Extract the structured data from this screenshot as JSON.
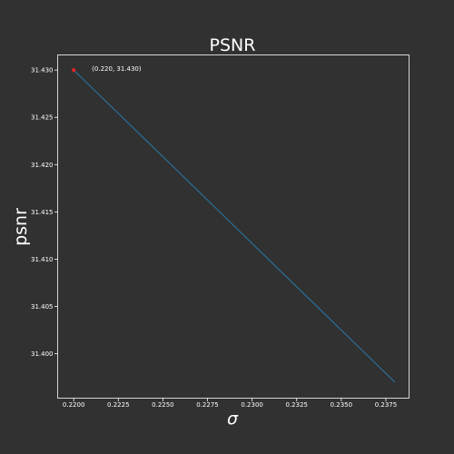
{
  "chart_data": {
    "type": "line",
    "title": "PSNR",
    "xlabel": "σ",
    "ylabel": "psnr",
    "xlim": [
      0.2191,
      0.2388
    ],
    "ylim": [
      31.3953,
      31.4316
    ],
    "x_ticks": [
      0.22,
      0.2225,
      0.225,
      0.2275,
      0.23,
      0.2325,
      0.235,
      0.2375
    ],
    "x_tick_labels": [
      "0.2200",
      "0.2225",
      "0.2250",
      "0.2275",
      "0.2300",
      "0.2325",
      "0.2350",
      "0.2375"
    ],
    "y_ticks": [
      31.4,
      31.405,
      31.41,
      31.415,
      31.42,
      31.425,
      31.43
    ],
    "y_tick_labels": [
      "31.400",
      "31.405",
      "31.410",
      "31.415",
      "31.420",
      "31.425",
      "31.430"
    ],
    "grid": false,
    "series": [
      {
        "x": [
          0.22,
          0.238
        ],
        "y": [
          31.43,
          31.397
        ],
        "color": "#2a6f97"
      }
    ],
    "highlight_point": {
      "x": 0.22,
      "y": 31.43,
      "color": "#d62728",
      "label": "(0.220, 31.430)"
    },
    "colors": {
      "background": "#313131",
      "axes_edge": "#ffffff",
      "text": "#ffffff"
    }
  }
}
